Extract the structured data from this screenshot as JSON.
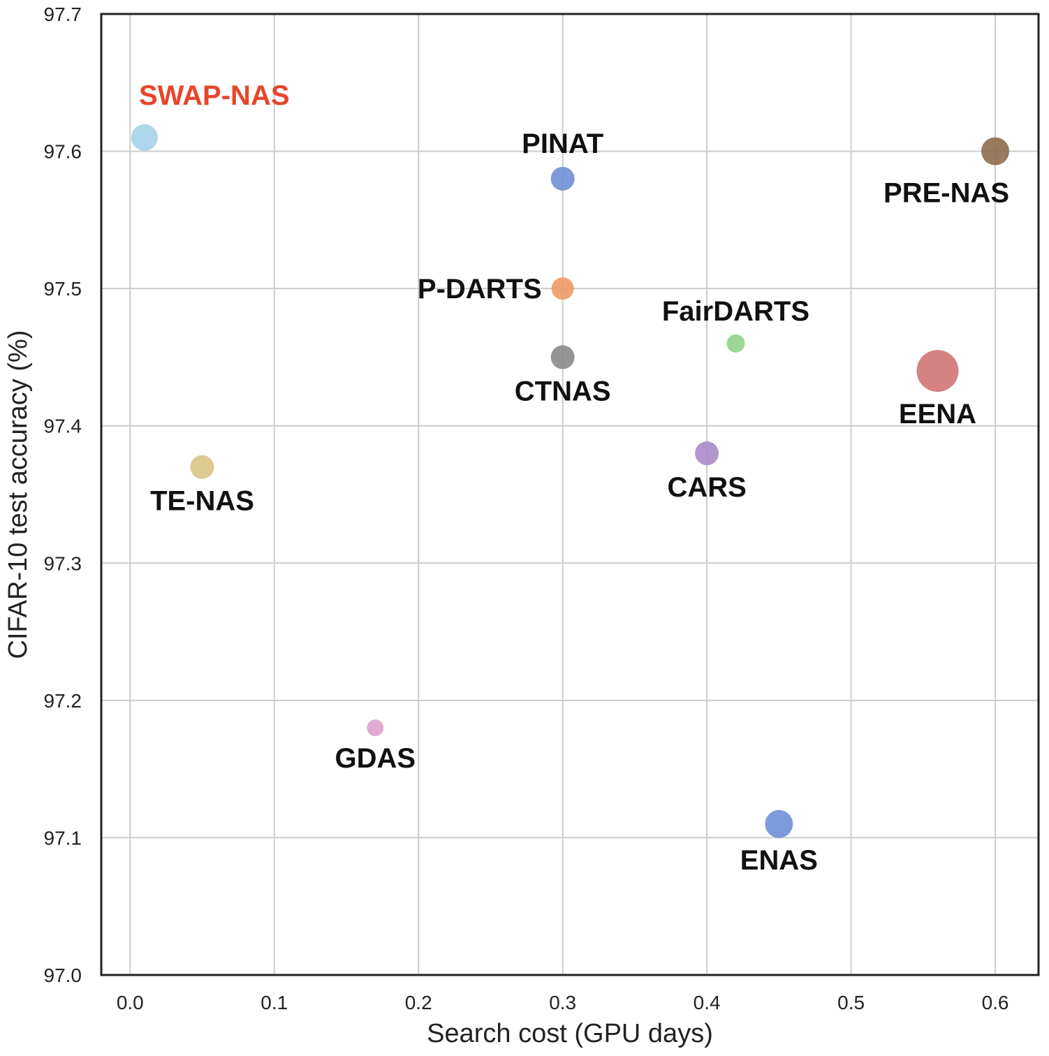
{
  "chart_data": {
    "type": "scatter",
    "xlabel": "Search cost (GPU days)",
    "ylabel": "CIFAR-10 test accuracy (%)",
    "xlim": [
      -0.02,
      0.63
    ],
    "ylim": [
      97.0,
      97.7
    ],
    "x_ticks": [
      "0.0",
      "0.1",
      "0.2",
      "0.3",
      "0.4",
      "0.5",
      "0.6"
    ],
    "y_ticks": [
      "97.0",
      "97.1",
      "97.2",
      "97.3",
      "97.4",
      "97.5",
      "97.6",
      "97.7"
    ],
    "grid": true,
    "points": [
      {
        "name": "SWAP-NAS",
        "x": 0.01,
        "y": 97.61,
        "color": "#a6d2e8",
        "label_color": "#e8452c",
        "label_pos": "above-right"
      },
      {
        "name": "PINAT",
        "x": 0.3,
        "y": 97.58,
        "color": "#6f8fd6",
        "label_color": "#111111",
        "label_pos": "above"
      },
      {
        "name": "PRE-NAS",
        "x": 0.6,
        "y": 97.6,
        "color": "#8c6b4f",
        "label_color": "#111111",
        "label_pos": "below-left"
      },
      {
        "name": "P-DARTS",
        "x": 0.3,
        "y": 97.5,
        "color": "#ee9a67",
        "label_color": "#111111",
        "label_pos": "left"
      },
      {
        "name": "FairDARTS",
        "x": 0.42,
        "y": 97.46,
        "color": "#90d48c",
        "label_color": "#111111",
        "label_pos": "above"
      },
      {
        "name": "CTNAS",
        "x": 0.3,
        "y": 97.45,
        "color": "#888888",
        "label_color": "#111111",
        "label_pos": "below"
      },
      {
        "name": "EENA",
        "x": 0.56,
        "y": 97.44,
        "color": "#d07474",
        "label_color": "#111111",
        "label_pos": "below"
      },
      {
        "name": "CARS",
        "x": 0.4,
        "y": 97.38,
        "color": "#a88bc9",
        "label_color": "#111111",
        "label_pos": "below"
      },
      {
        "name": "TE-NAS",
        "x": 0.05,
        "y": 97.37,
        "color": "#d9c487",
        "label_color": "#111111",
        "label_pos": "below"
      },
      {
        "name": "GDAS",
        "x": 0.17,
        "y": 97.18,
        "color": "#dca2d0",
        "label_color": "#111111",
        "label_pos": "below"
      },
      {
        "name": "ENAS",
        "x": 0.45,
        "y": 97.11,
        "color": "#6f8fd6",
        "label_color": "#111111",
        "label_pos": "below"
      }
    ]
  }
}
